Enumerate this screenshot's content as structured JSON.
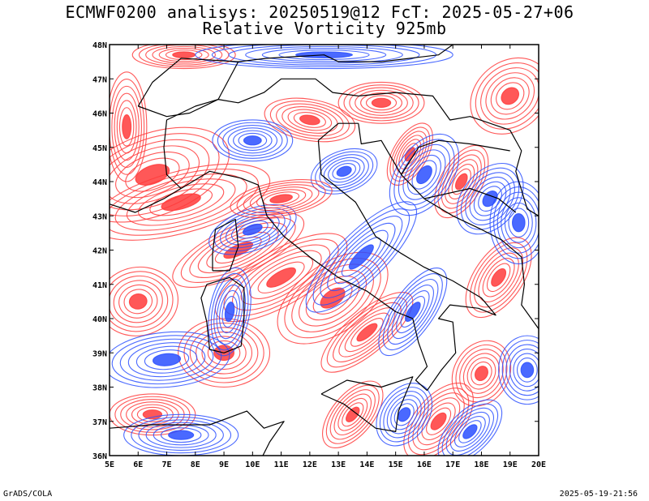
{
  "title_line1": "ECMWF0200 analisys: 20250519@12 FcT: 2025-05-27+06",
  "title_line2": "Relative Vorticity 925mb",
  "footer_left": "GrADS/COLA",
  "footer_right": "2025-05-19-21:56",
  "colors": {
    "positive": "#ff3b3b",
    "negative": "#2a4fff",
    "coast": "#000000"
  },
  "map": {
    "projection": "lat-lon",
    "lon_range": [
      5,
      20
    ],
    "lat_range": [
      36,
      48
    ],
    "lon_ticks": [
      "5E",
      "6E",
      "7E",
      "8E",
      "9E",
      "10E",
      "11E",
      "12E",
      "13E",
      "14E",
      "15E",
      "16E",
      "17E",
      "18E",
      "19E",
      "20E"
    ],
    "lat_ticks": [
      "36N",
      "37N",
      "38N",
      "39N",
      "40N",
      "41N",
      "42N",
      "43N",
      "44N",
      "45N",
      "46N",
      "47N",
      "48N"
    ],
    "field": "relative vorticity",
    "level": "925mb"
  }
}
